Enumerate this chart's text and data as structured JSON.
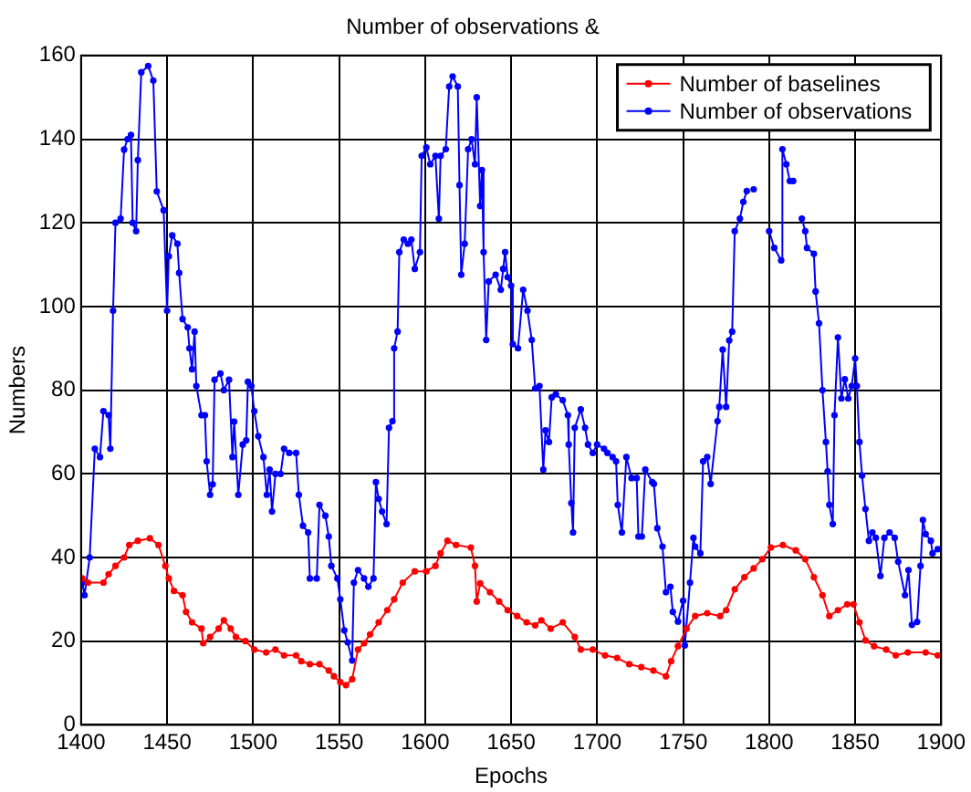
{
  "chart_data": {
    "type": "line",
    "title": "Number of observations &",
    "xlabel": "Epochs",
    "ylabel": "Numbers",
    "xlim": [
      1400,
      1900
    ],
    "xticks": [
      1400,
      1450,
      1500,
      1550,
      1600,
      1650,
      1700,
      1750,
      1800,
      1850,
      1900
    ],
    "ylim": [
      0,
      160
    ],
    "yticks": [
      0,
      20,
      40,
      60,
      80,
      100,
      120,
      140,
      160
    ],
    "grid": true,
    "legend": "top right",
    "marker": "circle",
    "line_style": "solid",
    "series": [
      {
        "name": "Number of baselines",
        "color": "#ff0000",
        "x": [
          1400.7,
          1404,
          1413,
          1416,
          1420,
          1425,
          1428,
          1433,
          1440,
          1445,
          1449,
          1451,
          1454,
          1459,
          1461,
          1464.5,
          1470,
          1471,
          1475,
          1480,
          1483,
          1487,
          1490,
          1495.5,
          1500.7,
          1507.6,
          1513,
          1518,
          1525,
          1528,
          1533,
          1538.6,
          1544,
          1547,
          1550.7,
          1554,
          1557.6,
          1561,
          1564.5,
          1568,
          1573,
          1578,
          1582,
          1587,
          1594,
          1600.7,
          1606,
          1609,
          1613,
          1618,
          1626.6,
          1629,
          1630,
          1632,
          1637.7,
          1643,
          1648,
          1653.5,
          1659,
          1664,
          1667.6,
          1673,
          1680,
          1687,
          1690.5,
          1697.5,
          1704.6,
          1711.6,
          1718.7,
          1725.7,
          1732.7,
          1740,
          1743,
          1747,
          1752,
          1757,
          1764,
          1771.5,
          1775,
          1780,
          1785.6,
          1791,
          1796,
          1801,
          1808,
          1815.5,
          1821,
          1826,
          1831,
          1835,
          1840,
          1845.4,
          1849,
          1852.5,
          1856,
          1861,
          1868,
          1873.6,
          1880.6,
          1891,
          1898
        ],
        "values": [
          35,
          34,
          34,
          36,
          38,
          40,
          43,
          44,
          44.6,
          43,
          38,
          35,
          32,
          31,
          27,
          24.5,
          23,
          19.5,
          21,
          23,
          25,
          23,
          21,
          20,
          18,
          17.3,
          18,
          16.6,
          16.6,
          15.2,
          14.5,
          14.5,
          13,
          11.6,
          10.2,
          9.5,
          10.9,
          18,
          19.5,
          21.6,
          24.5,
          27.4,
          30,
          34,
          36.7,
          36.7,
          38,
          41,
          44,
          43,
          42.4,
          38,
          29.5,
          33.8,
          31.7,
          29.5,
          27.4,
          26,
          24.5,
          23.8,
          25,
          23,
          24.5,
          21,
          18,
          18,
          16.6,
          16,
          14.5,
          13.8,
          13,
          11.6,
          15.2,
          18.8,
          23,
          26,
          26.7,
          26,
          27.4,
          32.4,
          35.3,
          37.4,
          39.6,
          42.4,
          43,
          41.7,
          39.6,
          35.3,
          31,
          26,
          27.4,
          28.8,
          28.8,
          24.5,
          20.2,
          18.8,
          18,
          16.6,
          17.3,
          17.3,
          16.6
        ]
      },
      {
        "name": "Number of observations",
        "color": "#0000ff",
        "x": [
          1400.7,
          1402,
          1405,
          1408,
          1411,
          1413,
          1416,
          1417,
          1418.6,
          1420,
          1423,
          1425,
          1427,
          1429,
          1430,
          1432,
          1433,
          1435,
          1439,
          1442,
          1444,
          1448,
          1450,
          1451,
          1453,
          1456,
          1457,
          1459,
          1462,
          1463,
          1464.5,
          1466,
          1467,
          1470,
          1472,
          1473,
          1475,
          1476.5,
          1477.6,
          1481,
          1483,
          1486,
          1488,
          1489,
          1491.4,
          1494,
          1496,
          1497,
          1499,
          1500.7,
          1503,
          1506,
          1508,
          1509.6,
          1511,
          1513,
          1516,
          1518,
          1521,
          1525,
          1526.6,
          1529,
          1532,
          1533,
          1537,
          1538.6,
          1542,
          1544,
          1545.5,
          1549,
          1550.7,
          1553,
          1555,
          1557.6,
          1558.6,
          1561,
          1564.5,
          1567,
          1570,
          1571.4,
          1573,
          1575,
          1577.6,
          1579,
          1581,
          1582,
          1584,
          1585,
          1587.6,
          1590,
          1592,
          1594,
          1597,
          1598,
          1600.7,
          1603,
          1606,
          1608,
          1609,
          1612,
          1614,
          1616,
          1619,
          1620,
          1621,
          1623,
          1625,
          1627,
          1629,
          1630,
          1632,
          1633,
          1634,
          1635.5,
          1637,
          1641,
          1644,
          1645.4,
          1646.5,
          1648,
          1650,
          1651,
          1654,
          1657,
          1659.5,
          1662,
          1664,
          1666.5,
          1668.7,
          1670,
          1672,
          1673.6,
          1676,
          1680,
          1683,
          1683.5,
          1685,
          1686,
          1687,
          1690.5,
          1693,
          1694.7,
          1697.5,
          1700,
          1704,
          1706,
          1709,
          1711,
          1712,
          1714.4,
          1717,
          1720,
          1723,
          1724,
          1726,
          1728,
          1732,
          1733,
          1735,
          1738,
          1740,
          1742.6,
          1744,
          1747,
          1750,
          1751,
          1754,
          1756,
          1757,
          1760,
          1761.6,
          1764,
          1766,
          1770,
          1771,
          1773,
          1775,
          1776.8,
          1778.5,
          1780,
          1783,
          1785,
          1787,
          1789,
          1791,
          1795,
          1800,
          1803,
          1807,
          1807.7,
          1810,
          1812,
          1814,
          1816,
          1819,
          1821,
          1822,
          1826,
          1827,
          1829,
          1831,
          1833,
          1834,
          1835,
          1837,
          1838,
          1840,
          1842,
          1844,
          1846,
          1848,
          1850,
          1851,
          1852.5,
          1854,
          1856,
          1858,
          1860,
          1862,
          1864.7,
          1867,
          1870,
          1873,
          1875,
          1879,
          1881,
          1883,
          1886,
          1888,
          1889.4,
          1891,
          1894,
          1895,
          1898,
          1900
        ],
        "values": [
          34,
          31,
          40,
          66,
          64,
          75,
          74,
          66,
          99,
          120,
          121,
          137.5,
          140,
          141,
          120,
          118,
          135,
          156,
          157.5,
          154,
          127.5,
          123,
          99,
          112,
          117,
          115,
          108,
          97,
          95,
          90,
          85,
          94,
          81,
          74,
          74,
          63,
          55,
          57.5,
          82.5,
          84,
          80,
          82.5,
          64,
          72.5,
          55,
          67,
          68,
          82,
          81,
          75,
          69,
          64,
          55,
          61,
          51,
          60,
          60,
          66,
          65,
          65,
          55,
          47.6,
          46,
          35,
          35,
          52.6,
          50,
          45,
          38,
          35,
          30,
          22.6,
          19.7,
          15.4,
          34,
          37,
          35,
          33,
          35,
          58,
          54,
          51,
          48,
          71,
          72.6,
          90,
          94,
          113,
          116,
          115,
          116,
          109,
          113,
          136,
          138,
          134,
          136,
          121,
          136,
          137.6,
          152.6,
          155,
          152.6,
          129,
          107.6,
          115,
          137.6,
          140,
          134,
          150,
          124,
          132.6,
          113,
          92,
          106,
          107.6,
          104,
          109,
          113,
          107,
          105,
          91,
          90,
          104,
          99,
          92,
          80.4,
          81,
          61,
          70.4,
          67.6,
          78.3,
          79,
          77.6,
          74,
          67,
          53,
          46,
          71,
          75.4,
          71,
          67,
          65,
          67,
          66,
          65,
          64,
          63,
          52.6,
          46,
          64,
          59,
          59,
          45,
          45,
          61,
          58,
          57.6,
          47,
          42.6,
          31.7,
          33,
          27,
          24.7,
          29.7,
          19,
          34,
          44.7,
          42.6,
          41,
          63,
          64,
          57.6,
          72.6,
          76,
          89.7,
          76,
          91.9,
          94,
          118,
          121,
          125,
          127.6,
          null,
          128,
          null,
          118,
          114,
          111,
          137.6,
          134,
          130,
          130,
          null,
          121,
          118,
          114,
          112.6,
          103.6,
          96,
          80,
          67.6,
          60.6,
          52.6,
          48,
          74,
          92.6,
          78,
          82.6,
          78,
          81,
          87.6,
          81,
          67.6,
          59.6,
          51.6,
          44,
          46,
          44.7,
          35.6,
          44.7,
          46,
          44.7,
          39,
          31,
          37,
          23.9,
          24.6,
          38,
          49,
          45.6,
          44,
          41,
          42,
          42
        ]
      }
    ]
  }
}
